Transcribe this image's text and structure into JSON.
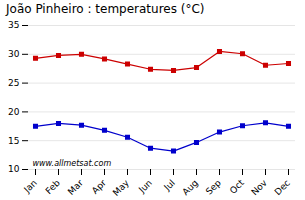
{
  "chart_data": {
    "type": "line",
    "title": "João Pinheiro : temperatures (°C)",
    "categories": [
      "Jan",
      "Feb",
      "Mar",
      "Apr",
      "May",
      "Jun",
      "Jul",
      "Aug",
      "Sep",
      "Oct",
      "Nov",
      "Dec"
    ],
    "series": [
      {
        "color": "#cc0000",
        "marker": "square",
        "values": [
          29.3,
          29.8,
          30.0,
          29.2,
          28.3,
          27.4,
          27.2,
          27.7,
          30.5,
          30.1,
          28.1,
          28.4
        ]
      },
      {
        "color": "#0000cc",
        "marker": "square",
        "values": [
          17.5,
          18.0,
          17.7,
          16.8,
          15.6,
          13.7,
          13.2,
          14.7,
          16.5,
          17.6,
          18.1,
          17.5
        ]
      }
    ],
    "ylim": [
      10,
      35
    ],
    "yticks": [
      10,
      15,
      20,
      25,
      30,
      35
    ],
    "grid": true,
    "annotations": [
      {
        "text": "www.allmetsat.com"
      }
    ]
  }
}
